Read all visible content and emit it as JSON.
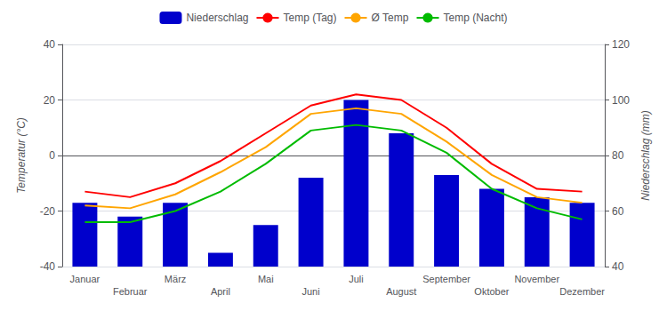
{
  "chart_data": {
    "type": "bar",
    "categories": [
      "Januar",
      "Februar",
      "März",
      "April",
      "Mai",
      "Juni",
      "Juli",
      "August",
      "September",
      "Oktober",
      "November",
      "Dezember"
    ],
    "series": [
      {
        "name": "Niederschlag",
        "type": "bar",
        "axis": "y2",
        "color": "#0000cc",
        "values": [
          63,
          58,
          63,
          45,
          55,
          72,
          100,
          88,
          73,
          68,
          65,
          63
        ]
      },
      {
        "name": "Temp (Tag)",
        "type": "line",
        "color": "#ff0000",
        "values": [
          -13,
          -15,
          -10,
          -2,
          8,
          18,
          22,
          20,
          10,
          -3,
          -12,
          -13
        ]
      },
      {
        "name": "Ø Temp",
        "type": "line",
        "color": "#ffa500",
        "values": [
          -18,
          -19,
          -14,
          -6,
          3,
          15,
          17,
          15,
          5,
          -7,
          -15,
          -17
        ]
      },
      {
        "name": "Temp (Nacht)",
        "type": "line",
        "color": "#00bb00",
        "values": [
          -24,
          -24,
          -20,
          -13,
          -3,
          9,
          11,
          9,
          1,
          -12,
          -19,
          -23
        ]
      }
    ],
    "ylabel": "Temperatur (°C)",
    "y2label": "Niederschlag (mm)",
    "ylim": [
      -40,
      40
    ],
    "yticks": [
      -40,
      -20,
      0,
      20,
      40
    ],
    "y2lim": [
      40,
      120
    ],
    "y2ticks": [
      40,
      60,
      80,
      100,
      120
    ],
    "grid": true,
    "legend": "top"
  }
}
